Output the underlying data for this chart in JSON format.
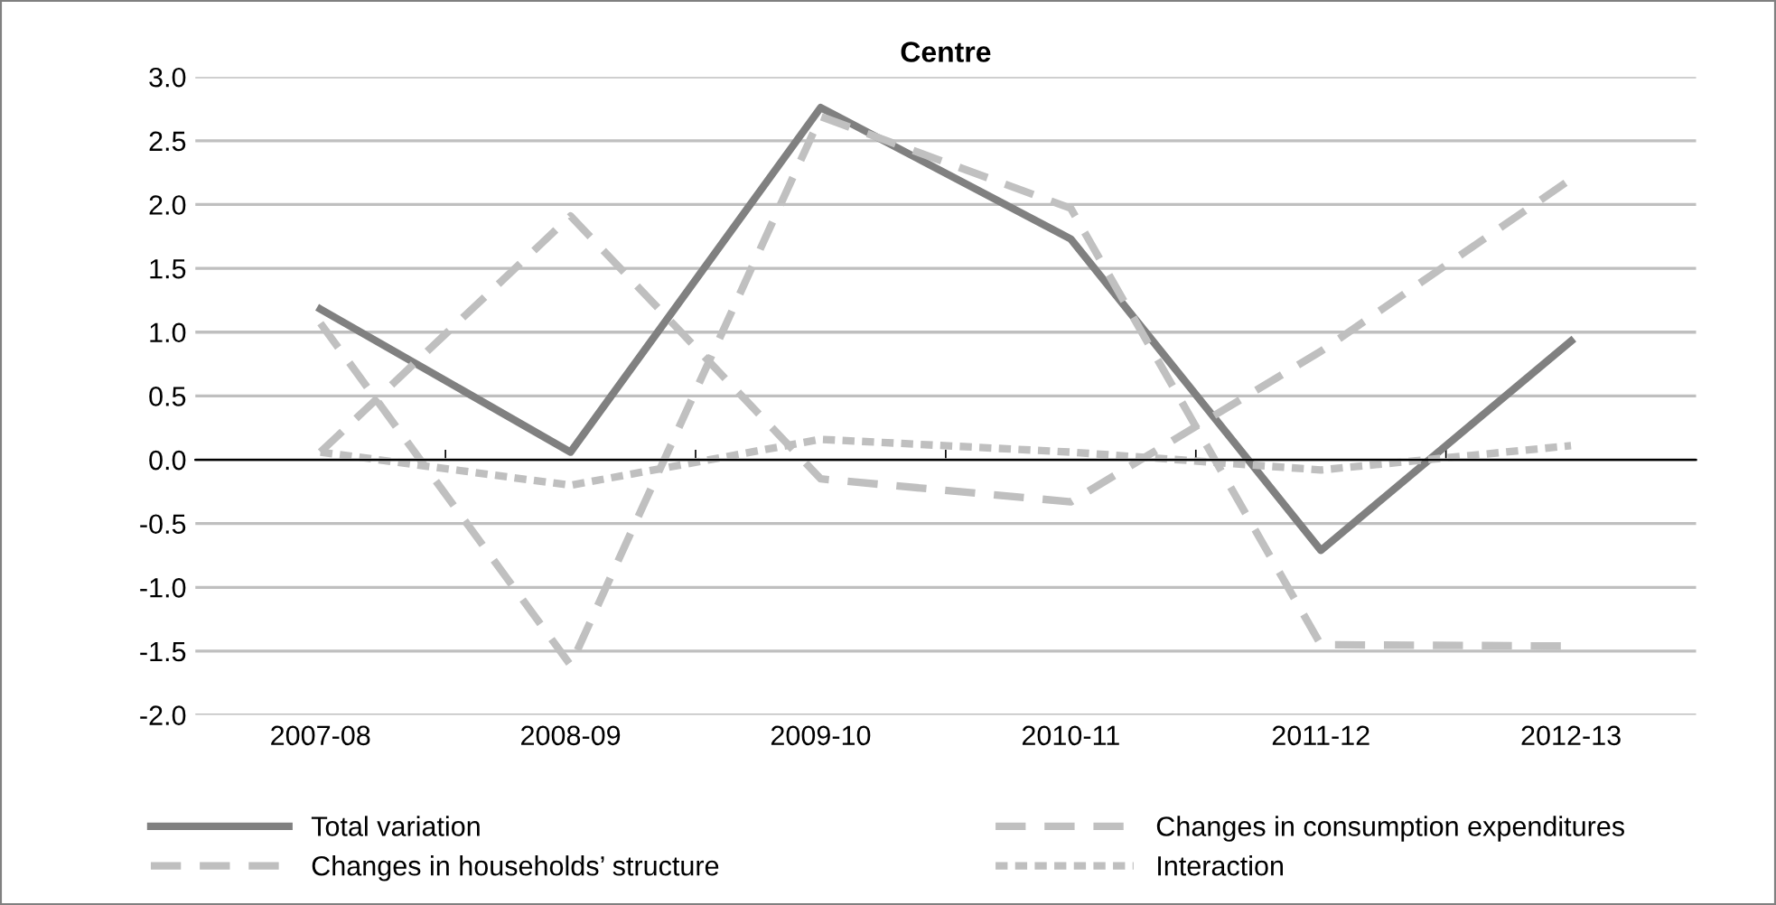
{
  "chart_data": {
    "type": "line",
    "title": "Centre",
    "categories": [
      "2007-08",
      "2008-09",
      "2009-10",
      "2010-11",
      "2011-12",
      "2012-13"
    ],
    "series": [
      {
        "name": "Total variation",
        "color": "#808080",
        "line_style": "solid",
        "values": [
          1.18,
          0.06,
          2.76,
          1.73,
          -0.71,
          0.93
        ]
      },
      {
        "name": "Changes in consumption expenditures",
        "color": "#c0c0c0",
        "line_style": "dashed",
        "values": [
          1.07,
          -1.61,
          2.69,
          1.97,
          -1.45,
          -1.46
        ]
      },
      {
        "name": "Changes in households’ structure",
        "color": "#bfbfbf",
        "line_style": "dashed",
        "values": [
          0.06,
          1.91,
          -0.15,
          -0.33,
          0.85,
          2.2
        ]
      },
      {
        "name": "Interaction",
        "color": "#bfbfbf",
        "line_style": "dotted",
        "values": [
          0.06,
          -0.2,
          0.16,
          0.06,
          -0.08,
          0.11
        ]
      }
    ],
    "ylim": [
      -2,
      3
    ],
    "yticks": [
      {
        "value": -2,
        "label": "-2.0"
      },
      {
        "value": -1.5,
        "label": "-1.5"
      },
      {
        "value": -1,
        "label": "-1.0"
      },
      {
        "value": -0.5,
        "label": "-0.5"
      },
      {
        "value": 0,
        "label": "0.0"
      },
      {
        "value": 0.5,
        "label": "0.5"
      },
      {
        "value": 1,
        "label": "1.0"
      },
      {
        "value": 1.5,
        "label": "1.5"
      },
      {
        "value": 2,
        "label": "2.0"
      },
      {
        "value": 2.5,
        "label": "2.5"
      },
      {
        "value": 3,
        "label": "3.0"
      }
    ],
    "grid": "y",
    "legend": "bottom",
    "marker": "none"
  }
}
